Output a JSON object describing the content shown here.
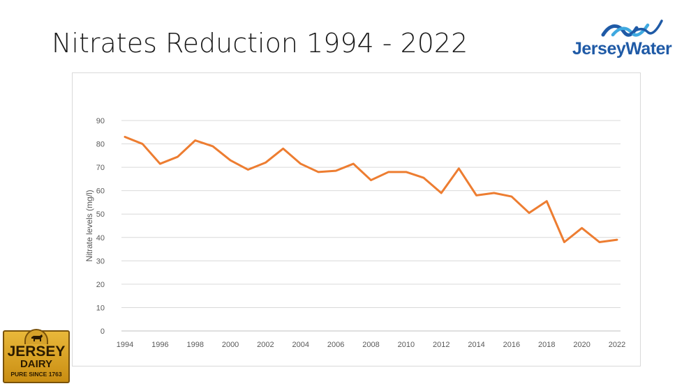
{
  "slide": {
    "title": "Nitrates Reduction 1994 - 2022"
  },
  "logos": {
    "jersey_water": {
      "text": "JerseyWater",
      "icon": "water-waves-icon",
      "color": "#1f5aa6"
    },
    "jersey_dairy": {
      "line1": "JERSEY",
      "line2": "DAIRY",
      "line3": "PURE SINCE 1763",
      "icon": "cow-icon"
    }
  },
  "chart_data": {
    "type": "line",
    "title": "",
    "xlabel": "",
    "ylabel": "Nitrate levels (mg/l)",
    "ylim": [
      0,
      90
    ],
    "yticks": [
      "0",
      "10",
      "20",
      "30",
      "40",
      "50",
      "60",
      "70",
      "80",
      "90"
    ],
    "xticks": [
      "1994",
      "1996",
      "1998",
      "2000",
      "2002",
      "2004",
      "2006",
      "2008",
      "2010",
      "2012",
      "2014",
      "2016",
      "2018",
      "2020",
      "2022"
    ],
    "grid": true,
    "line_color": "#ed7d31",
    "x": [
      1994,
      1995,
      1996,
      1997,
      1998,
      1999,
      2000,
      2001,
      2002,
      2003,
      2004,
      2005,
      2006,
      2007,
      2008,
      2009,
      2010,
      2011,
      2012,
      2013,
      2014,
      2015,
      2016,
      2017,
      2018,
      2019,
      2020,
      2021,
      2022
    ],
    "series": [
      {
        "values": [
          83,
          80,
          71.5,
          74.5,
          81.5,
          79,
          73,
          69,
          72,
          78,
          71.5,
          68,
          68.5,
          71.5,
          64.5,
          68,
          68,
          65.5,
          59,
          69.5,
          58,
          59,
          57.5,
          50.5,
          55.5,
          38,
          44,
          38,
          39
        ]
      }
    ]
  }
}
